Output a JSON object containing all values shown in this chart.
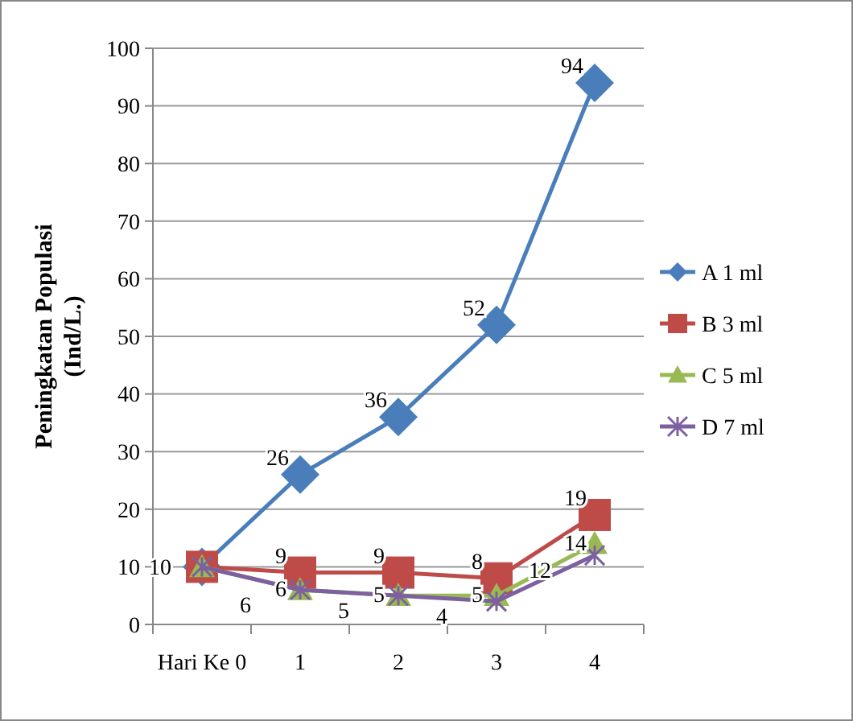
{
  "chart_data": {
    "type": "line",
    "ylabel": "Peningkatan Populasi\n(Ind/L.)",
    "categories": [
      "Hari Ke 0",
      "1",
      "2",
      "3",
      "4"
    ],
    "ylim": [
      0,
      100
    ],
    "yticks": [
      0,
      10,
      20,
      30,
      40,
      50,
      60,
      70,
      80,
      90,
      100
    ],
    "grid": "y",
    "legend": "right",
    "series": [
      {
        "name": "A 1 ml",
        "color": "#4a7ebb",
        "marker": "diamond",
        "values": [
          10,
          26,
          36,
          52,
          94
        ],
        "value_labels": [
          "10",
          "26",
          "36",
          "52",
          "94"
        ]
      },
      {
        "name": "B 3 ml",
        "color": "#be4b48",
        "marker": "square",
        "values": [
          10,
          9,
          9,
          8,
          19
        ],
        "value_labels": [
          null,
          "9",
          "9",
          "8",
          "19"
        ]
      },
      {
        "name": "C 5 ml",
        "color": "#98b954",
        "marker": "triangle",
        "values": [
          10,
          6,
          5,
          5,
          14
        ],
        "value_labels": [
          null,
          "6",
          "5",
          "5",
          "14"
        ]
      },
      {
        "name": "D 7 ml",
        "color": "#7d60a0",
        "marker": "cross",
        "values": [
          10,
          6,
          5,
          4,
          12
        ],
        "value_labels": [
          null,
          "6",
          "5",
          "4",
          "12"
        ]
      }
    ]
  }
}
